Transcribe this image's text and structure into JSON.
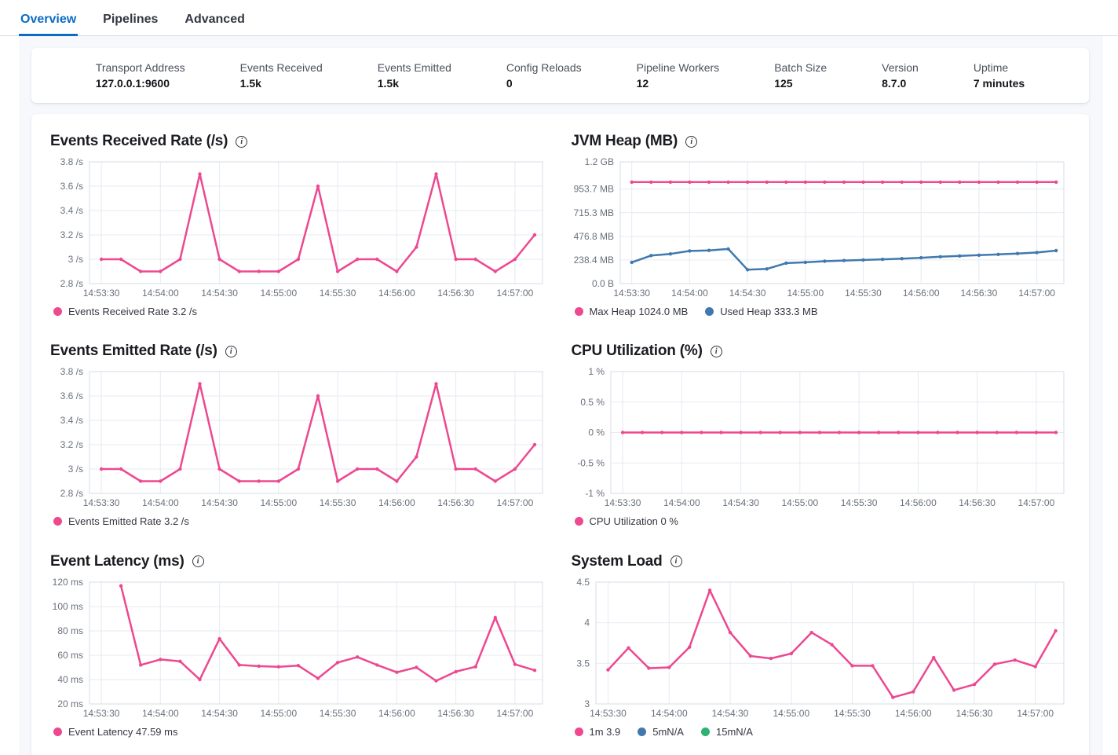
{
  "colors": {
    "accent": "#0b6bc4",
    "pink": "#ed4890",
    "blue": "#4179ae",
    "green": "#2cb373"
  },
  "tabs": [
    {
      "label": "Overview",
      "active": true
    },
    {
      "label": "Pipelines",
      "active": false
    },
    {
      "label": "Advanced",
      "active": false
    }
  ],
  "stats": [
    {
      "label": "Transport Address",
      "value": "127.0.0.1:9600"
    },
    {
      "label": "Events Received",
      "value": "1.5k"
    },
    {
      "label": "Events Emitted",
      "value": "1.5k"
    },
    {
      "label": "Config Reloads",
      "value": "0"
    },
    {
      "label": "Pipeline Workers",
      "value": "12"
    },
    {
      "label": "Batch Size",
      "value": "125"
    },
    {
      "label": "Version",
      "value": "8.7.0"
    },
    {
      "label": "Uptime",
      "value": "7 minutes"
    }
  ],
  "x_axis": {
    "tick_seconds": [
      0,
      30,
      60,
      90,
      120,
      150,
      180,
      210
    ],
    "tick_labels": [
      "14:53:30",
      "14:54:00",
      "14:54:30",
      "14:55:00",
      "14:55:30",
      "14:56:00",
      "14:56:30",
      "14:57:00"
    ],
    "xlim": [
      -6,
      224
    ]
  },
  "chart_data": [
    {
      "type": "line",
      "name": "events-received-rate",
      "title": "Events Received Rate (/s)",
      "info_icon": "i-in-circle",
      "ylim": [
        2.8,
        3.8
      ],
      "y_ticks": [
        {
          "v": 2.8,
          "label": "2.8 /s"
        },
        {
          "v": 3.0,
          "label": "3 /s"
        },
        {
          "v": 3.2,
          "label": "3.2 /s"
        },
        {
          "v": 3.4,
          "label": "3.4 /s"
        },
        {
          "v": 3.6,
          "label": "3.6 /s"
        },
        {
          "v": 3.8,
          "label": "3.8 /s"
        }
      ],
      "legend": [
        {
          "label": "Events Received Rate 3.2 /s",
          "color": "#ed4890"
        }
      ],
      "series": [
        {
          "name": "Events Received Rate",
          "color": "#ed4890",
          "x": [
            0,
            10,
            20,
            30,
            40,
            50,
            60,
            70,
            80,
            90,
            100,
            110,
            120,
            130,
            140,
            150,
            160,
            170,
            180,
            190,
            200,
            210,
            220
          ],
          "values": [
            3.0,
            3.0,
            2.9,
            2.9,
            3.0,
            3.7,
            3.0,
            2.9,
            2.9,
            2.9,
            3.0,
            3.6,
            2.9,
            3.0,
            3.0,
            2.9,
            3.1,
            3.7,
            3.0,
            3.0,
            2.9,
            3.0,
            3.2
          ]
        }
      ]
    },
    {
      "type": "line",
      "name": "jvm-heap",
      "title": "JVM Heap (MB)",
      "info_icon": "i-in-circle",
      "ylim": [
        0,
        1228.8
      ],
      "y_ticks": [
        {
          "v": 0,
          "label": "0.0 B"
        },
        {
          "v": 238.4,
          "label": "238.4 MB"
        },
        {
          "v": 476.8,
          "label": "476.8 MB"
        },
        {
          "v": 715.3,
          "label": "715.3 MB"
        },
        {
          "v": 953.7,
          "label": "953.7 MB"
        },
        {
          "v": 1228.8,
          "label": "1.2 GB"
        }
      ],
      "legend": [
        {
          "label": "Max Heap 1024.0 MB",
          "color": "#ed4890"
        },
        {
          "label": "Used Heap 333.3 MB",
          "color": "#4179ae"
        }
      ],
      "series": [
        {
          "name": "Max Heap",
          "color": "#ed4890",
          "x": [
            0,
            10,
            20,
            30,
            40,
            50,
            60,
            70,
            80,
            90,
            100,
            110,
            120,
            130,
            140,
            150,
            160,
            170,
            180,
            190,
            200,
            210,
            220
          ],
          "values": [
            1024,
            1024,
            1024,
            1024,
            1024,
            1024,
            1024,
            1024,
            1024,
            1024,
            1024,
            1024,
            1024,
            1024,
            1024,
            1024,
            1024,
            1024,
            1024,
            1024,
            1024,
            1024,
            1024
          ]
        },
        {
          "name": "Used Heap",
          "color": "#4179ae",
          "x": [
            0,
            10,
            20,
            30,
            40,
            50,
            60,
            70,
            80,
            90,
            100,
            110,
            120,
            130,
            140,
            150,
            160,
            170,
            180,
            190,
            200,
            210,
            220
          ],
          "values": [
            215,
            283,
            300,
            330,
            335,
            350,
            140,
            148,
            207,
            215,
            226,
            233,
            239,
            245,
            252,
            261,
            271,
            279,
            287,
            295,
            304,
            314,
            333
          ]
        }
      ]
    },
    {
      "type": "line",
      "name": "events-emitted-rate",
      "title": "Events Emitted Rate (/s)",
      "info_icon": "i-in-circle",
      "ylim": [
        2.8,
        3.8
      ],
      "y_ticks": [
        {
          "v": 2.8,
          "label": "2.8 /s"
        },
        {
          "v": 3.0,
          "label": "3 /s"
        },
        {
          "v": 3.2,
          "label": "3.2 /s"
        },
        {
          "v": 3.4,
          "label": "3.4 /s"
        },
        {
          "v": 3.6,
          "label": "3.6 /s"
        },
        {
          "v": 3.8,
          "label": "3.8 /s"
        }
      ],
      "legend": [
        {
          "label": "Events Emitted Rate 3.2 /s",
          "color": "#ed4890"
        }
      ],
      "series": [
        {
          "name": "Events Emitted Rate",
          "color": "#ed4890",
          "x": [
            0,
            10,
            20,
            30,
            40,
            50,
            60,
            70,
            80,
            90,
            100,
            110,
            120,
            130,
            140,
            150,
            160,
            170,
            180,
            190,
            200,
            210,
            220
          ],
          "values": [
            3.0,
            3.0,
            2.9,
            2.9,
            3.0,
            3.7,
            3.0,
            2.9,
            2.9,
            2.9,
            3.0,
            3.6,
            2.9,
            3.0,
            3.0,
            2.9,
            3.1,
            3.7,
            3.0,
            3.0,
            2.9,
            3.0,
            3.2
          ]
        }
      ]
    },
    {
      "type": "line",
      "name": "cpu-utilization",
      "title": "CPU Utilization (%)",
      "info_icon": "i-in-circle",
      "ylim": [
        -1,
        1
      ],
      "y_ticks": [
        {
          "v": -1,
          "label": "-1 %"
        },
        {
          "v": -0.5,
          "label": "-0.5 %"
        },
        {
          "v": 0,
          "label": "0 %"
        },
        {
          "v": 0.5,
          "label": "0.5 %"
        },
        {
          "v": 1,
          "label": "1 %"
        }
      ],
      "legend": [
        {
          "label": "CPU Utilization 0 %",
          "color": "#ed4890"
        }
      ],
      "series": [
        {
          "name": "CPU Utilization",
          "color": "#ed4890",
          "x": [
            0,
            10,
            20,
            30,
            40,
            50,
            60,
            70,
            80,
            90,
            100,
            110,
            120,
            130,
            140,
            150,
            160,
            170,
            180,
            190,
            200,
            210,
            220
          ],
          "values": [
            0,
            0,
            0,
            0,
            0,
            0,
            0,
            0,
            0,
            0,
            0,
            0,
            0,
            0,
            0,
            0,
            0,
            0,
            0,
            0,
            0,
            0,
            0
          ]
        }
      ]
    },
    {
      "type": "line",
      "name": "event-latency",
      "title": "Event Latency (ms)",
      "info_icon": "i-in-circle",
      "ylim": [
        20,
        120
      ],
      "y_ticks": [
        {
          "v": 20,
          "label": "20 ms"
        },
        {
          "v": 40,
          "label": "40 ms"
        },
        {
          "v": 60,
          "label": "60 ms"
        },
        {
          "v": 80,
          "label": "80 ms"
        },
        {
          "v": 100,
          "label": "100 ms"
        },
        {
          "v": 120,
          "label": "120 ms"
        }
      ],
      "legend": [
        {
          "label": "Event Latency 47.59 ms",
          "color": "#ed4890"
        }
      ],
      "series": [
        {
          "name": "Event Latency",
          "color": "#ed4890",
          "x": [
            10,
            20,
            30,
            40,
            50,
            60,
            70,
            80,
            90,
            100,
            110,
            120,
            130,
            140,
            150,
            160,
            170,
            180,
            190,
            200,
            210,
            220
          ],
          "values": [
            117,
            52,
            56.5,
            55,
            40,
            73.5,
            52,
            51,
            50.5,
            51.5,
            41,
            54,
            58.5,
            52,
            46,
            50,
            39,
            46.5,
            50.5,
            91,
            52.5,
            47.59
          ]
        }
      ]
    },
    {
      "type": "line",
      "name": "system-load",
      "title": "System Load",
      "info_icon": "i-in-circle",
      "ylim": [
        3,
        4.5
      ],
      "y_ticks": [
        {
          "v": 3,
          "label": "3"
        },
        {
          "v": 3.5,
          "label": "3.5"
        },
        {
          "v": 4,
          "label": "4"
        },
        {
          "v": 4.5,
          "label": "4.5"
        }
      ],
      "legend": [
        {
          "label": "1m 3.9",
          "color": "#ed4890"
        },
        {
          "label": "5mN/A",
          "color": "#4179ae"
        },
        {
          "label": "15mN/A",
          "color": "#2cb373"
        }
      ],
      "series": [
        {
          "name": "1m",
          "color": "#ed4890",
          "x": [
            0,
            10,
            20,
            30,
            40,
            50,
            60,
            70,
            80,
            90,
            100,
            110,
            120,
            130,
            140,
            150,
            160,
            170,
            180,
            190,
            200,
            210,
            220
          ],
          "values": [
            3.42,
            3.69,
            3.44,
            3.45,
            3.7,
            4.4,
            3.88,
            3.59,
            3.56,
            3.62,
            3.88,
            3.73,
            3.47,
            3.47,
            3.08,
            3.15,
            3.57,
            3.17,
            3.24,
            3.49,
            3.54,
            3.46,
            3.9
          ]
        }
      ]
    }
  ]
}
